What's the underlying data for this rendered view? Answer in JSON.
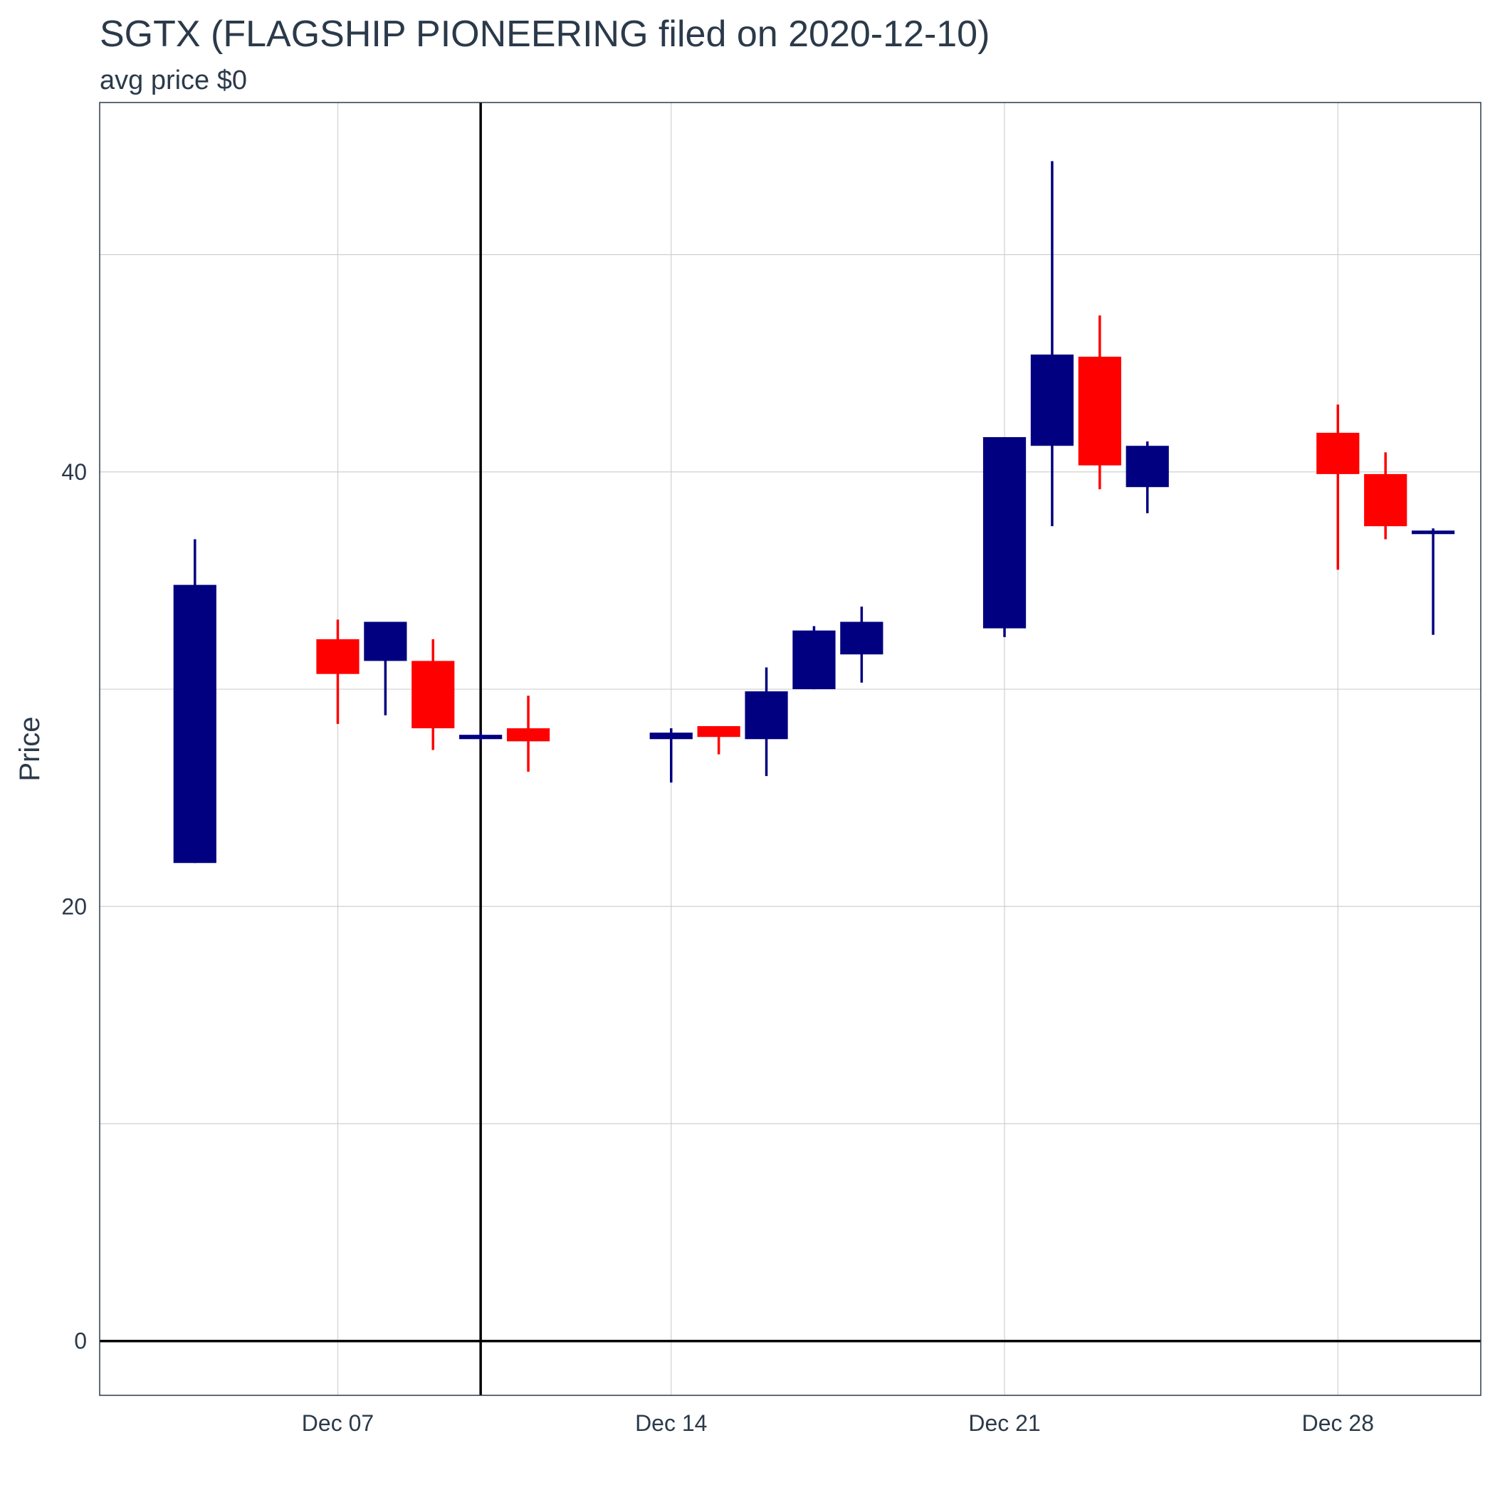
{
  "chart_data": {
    "type": "candlestick",
    "title": "SGTX (FLAGSHIP PIONEERING filed on 2020-12-10)",
    "subtitle": "avg price $0",
    "ylabel": "Price",
    "xlabel": "",
    "ylim": [
      -2.5,
      57
    ],
    "y_ticks": [
      0,
      20,
      40
    ],
    "x_ticks": [
      {
        "date": "2020-12-07",
        "label": "Dec 07"
      },
      {
        "date": "2020-12-14",
        "label": "Dec 14"
      },
      {
        "date": "2020-12-21",
        "label": "Dec 21"
      },
      {
        "date": "2020-12-28",
        "label": "Dec 28"
      }
    ],
    "xlim": [
      "2020-12-02",
      "2020-12-31"
    ],
    "filing_date": "2020-12-10",
    "grid": true,
    "colors": {
      "up": "#000080",
      "down": "#ff0000",
      "reference": "#000000",
      "grid": "#d0d0d0",
      "panel_border": "#2b3a4a"
    },
    "candles": [
      {
        "date": "2020-12-04",
        "open": 22.0,
        "high": 36.9,
        "low": 22.0,
        "close": 34.8
      },
      {
        "date": "2020-12-07",
        "open": 32.3,
        "high": 33.2,
        "low": 28.4,
        "close": 30.7
      },
      {
        "date": "2020-12-08",
        "open": 31.3,
        "high": 33.1,
        "low": 28.8,
        "close": 33.1
      },
      {
        "date": "2020-12-09",
        "open": 31.3,
        "high": 32.3,
        "low": 27.2,
        "close": 28.2
      },
      {
        "date": "2020-12-10",
        "open": 27.7,
        "high": 28.0,
        "low": 27.6,
        "close": 27.9
      },
      {
        "date": "2020-12-11",
        "open": 28.2,
        "high": 29.7,
        "low": 26.2,
        "close": 27.6
      },
      {
        "date": "2020-12-14",
        "open": 27.7,
        "high": 28.2,
        "low": 25.7,
        "close": 28.0
      },
      {
        "date": "2020-12-15",
        "open": 28.3,
        "high": 28.3,
        "low": 27.0,
        "close": 27.8
      },
      {
        "date": "2020-12-16",
        "open": 27.7,
        "high": 31.0,
        "low": 26.0,
        "close": 29.9
      },
      {
        "date": "2020-12-17",
        "open": 30.0,
        "high": 32.9,
        "low": 30.0,
        "close": 32.7
      },
      {
        "date": "2020-12-18",
        "open": 31.6,
        "high": 33.8,
        "low": 30.3,
        "close": 33.1
      },
      {
        "date": "2020-12-21",
        "open": 32.8,
        "high": 41.6,
        "low": 32.4,
        "close": 41.6
      },
      {
        "date": "2020-12-22",
        "open": 41.2,
        "high": 54.3,
        "low": 37.5,
        "close": 45.4
      },
      {
        "date": "2020-12-23",
        "open": 45.3,
        "high": 47.2,
        "low": 39.2,
        "close": 40.3
      },
      {
        "date": "2020-12-24",
        "open": 39.3,
        "high": 41.4,
        "low": 38.1,
        "close": 41.2
      },
      {
        "date": "2020-12-28",
        "open": 41.8,
        "high": 43.1,
        "low": 35.5,
        "close": 39.9
      },
      {
        "date": "2020-12-29",
        "open": 39.9,
        "high": 40.9,
        "low": 36.9,
        "close": 37.5
      },
      {
        "date": "2020-12-30",
        "open": 37.3,
        "high": 37.4,
        "low": 32.5,
        "close": 37.3
      }
    ]
  }
}
